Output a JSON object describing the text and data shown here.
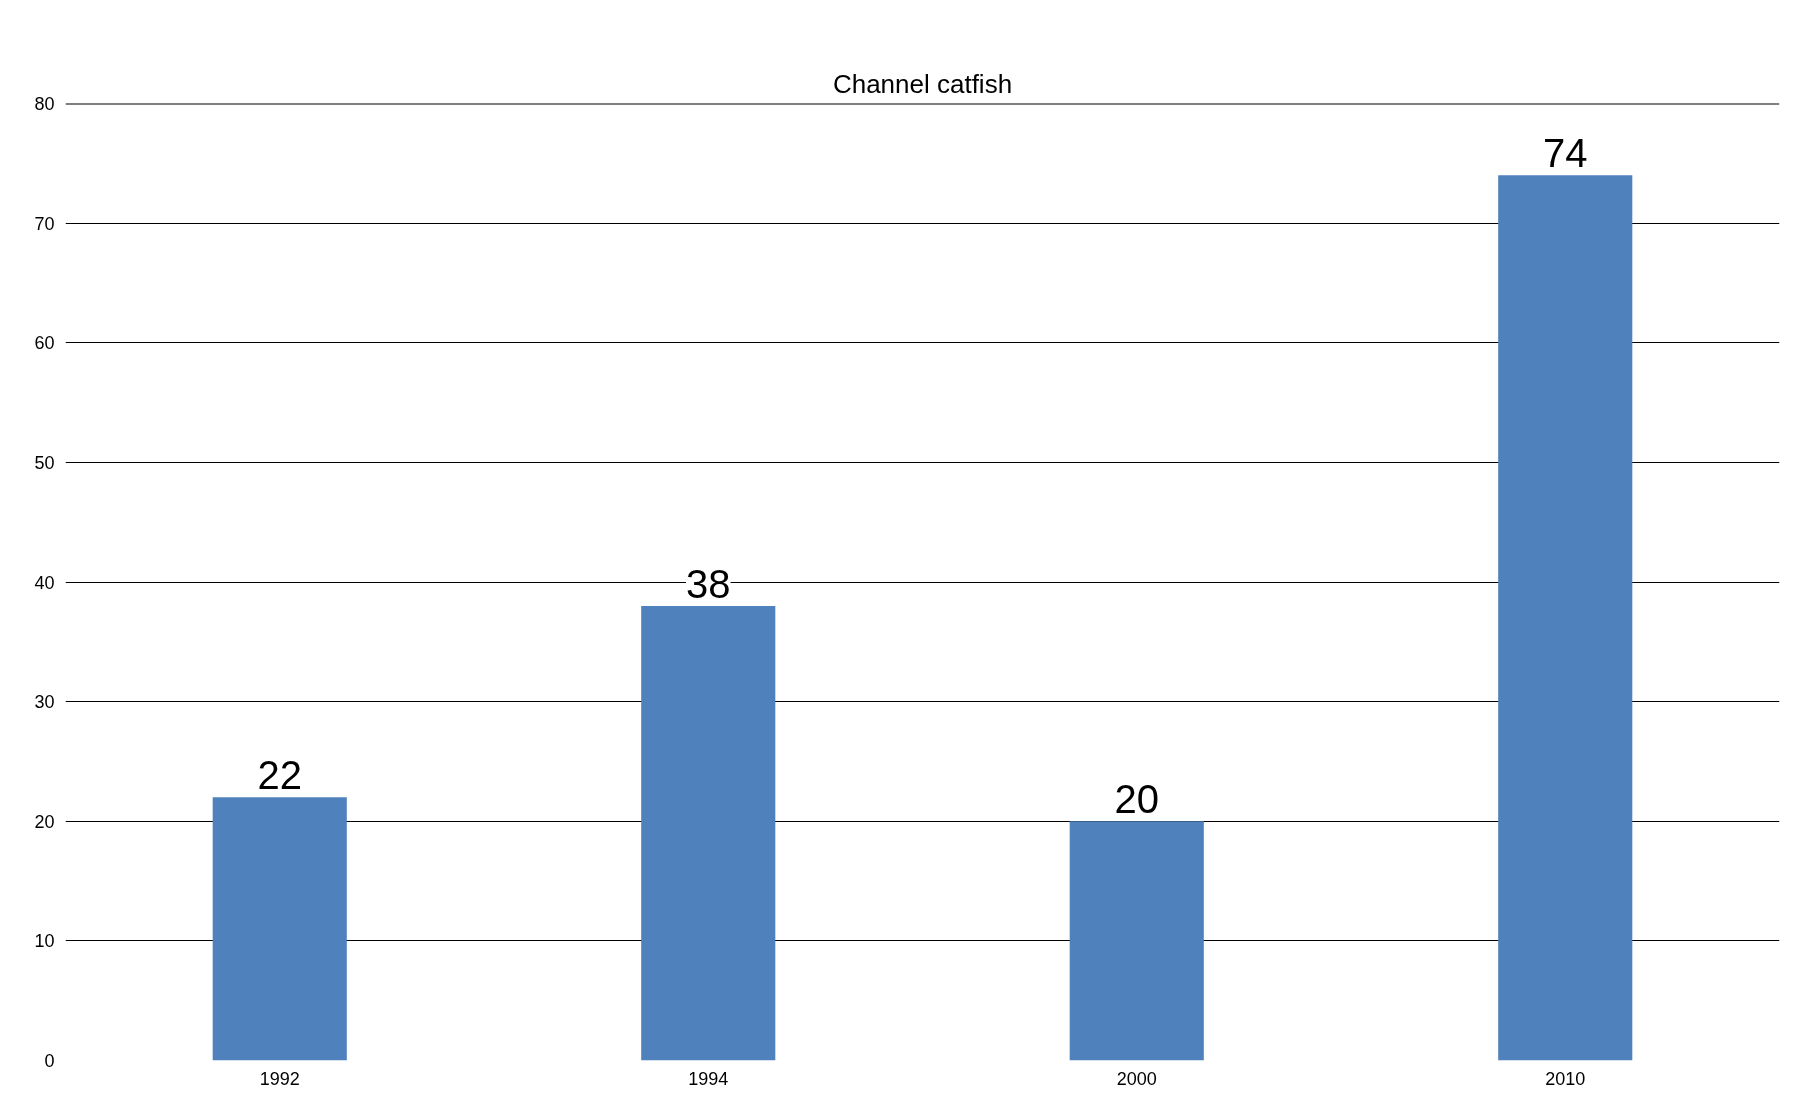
{
  "chart_data": {
    "type": "bar",
    "title": "Channel catfish",
    "categories": [
      "1992",
      "1994",
      "2000",
      "2010"
    ],
    "values": [
      22,
      38,
      20,
      74
    ],
    "color": "#4f81bd",
    "ylim": [
      0,
      80
    ],
    "yticks": [
      0,
      10,
      20,
      30,
      40,
      50,
      60,
      70,
      80
    ],
    "grid": "y",
    "data_labels": true
  }
}
